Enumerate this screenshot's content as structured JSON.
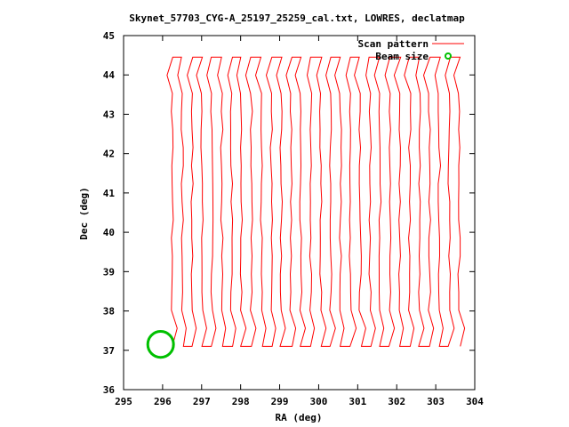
{
  "chart_data": {
    "type": "line",
    "title": "Skynet_57703_CYG-A_25197_25259_cal.txt, LOWRES, declatmap",
    "xlabel": "RA (deg)",
    "ylabel": "Dec (deg)",
    "xlim": [
      295,
      304
    ],
    "ylim": [
      36,
      45
    ],
    "xticks": [
      "295",
      "296",
      "297",
      "298",
      "299",
      "300",
      "301",
      "302",
      "303",
      "304"
    ],
    "yticks": [
      "36",
      "37",
      "38",
      "39",
      "40",
      "41",
      "42",
      "43",
      "44",
      "45"
    ],
    "grid": false,
    "legend_position": "top-right",
    "series": [
      {
        "name": "Scan pattern",
        "style": "line",
        "color": "#ff0000",
        "scan": {
          "ra_start": 296.25,
          "ra_end": 303.6,
          "dec_low": 37.1,
          "dec_high": 44.45,
          "legs": 30
        }
      },
      {
        "name": "Beam size",
        "style": "circle",
        "color": "#00c000",
        "center": [
          295.95,
          37.15
        ],
        "radius_deg": 0.33
      }
    ]
  }
}
